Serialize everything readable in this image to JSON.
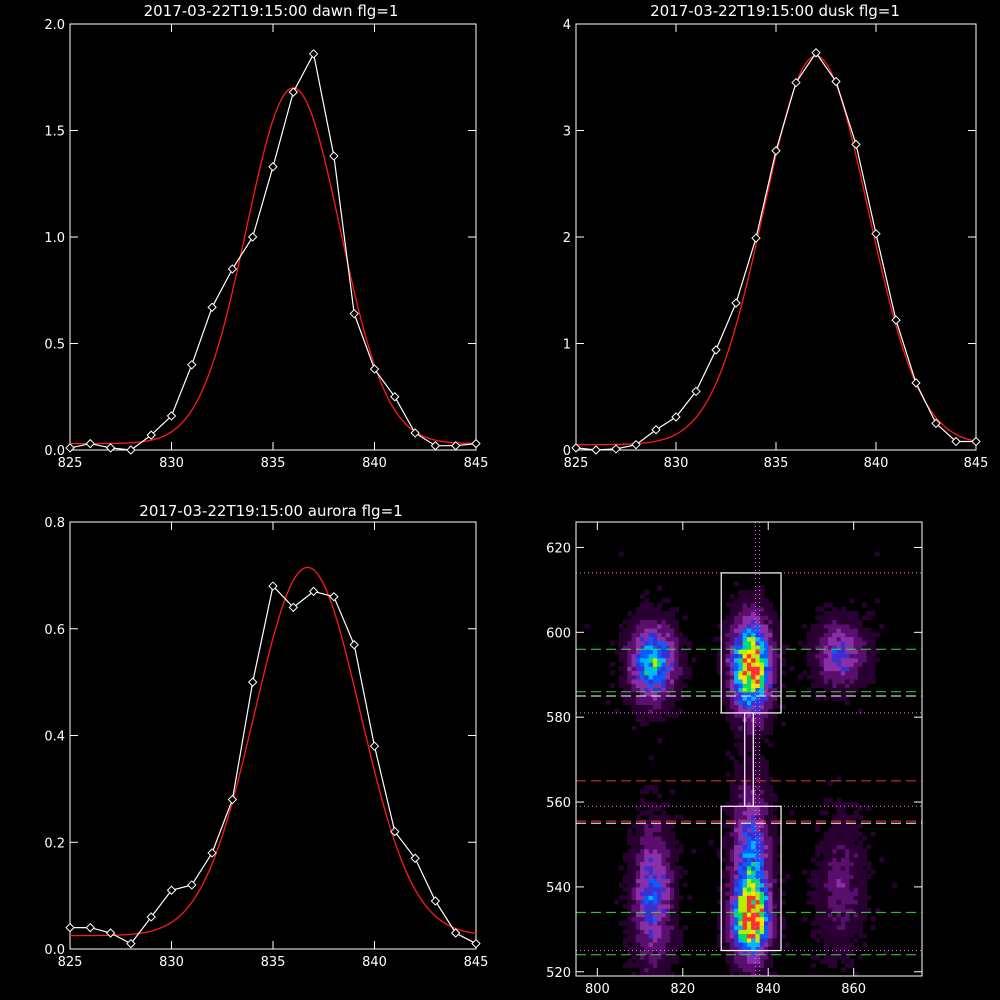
{
  "chart_data": [
    {
      "type": "line",
      "title": "2017-03-22T19:15:00 dawn flg=1",
      "xlim": [
        825,
        845
      ],
      "ylim": [
        0,
        2.0
      ],
      "x_ticks": [
        825,
        830,
        835,
        840,
        845
      ],
      "y_ticks": [
        0.0,
        0.5,
        1.0,
        1.5,
        2.0
      ],
      "y_tick_labels": [
        "0.0",
        "0.5",
        "1.0",
        "1.5",
        "2.0"
      ],
      "series": [
        {
          "role": "data",
          "color": "#ffffff",
          "marker": "diamond",
          "x": [
            825,
            826,
            827,
            828,
            829,
            830,
            831,
            832,
            833,
            834,
            835,
            836,
            837,
            838,
            839,
            840,
            841,
            842,
            843,
            844,
            845
          ],
          "y": [
            0.01,
            0.03,
            0.01,
            0.0,
            0.07,
            0.16,
            0.4,
            0.67,
            0.85,
            1.0,
            1.33,
            1.68,
            1.86,
            1.38,
            0.64,
            0.38,
            0.25,
            0.08,
            0.02,
            0.02,
            0.03
          ]
        },
        {
          "role": "fit",
          "color": "#ff1a1a",
          "gaussian": {
            "amplitude": 1.67,
            "center": 836.0,
            "sigma": 2.3,
            "offset": 0.03
          }
        }
      ]
    },
    {
      "type": "line",
      "title": "2017-03-22T19:15:00 dusk flg=1",
      "xlim": [
        825,
        845
      ],
      "ylim": [
        0,
        4
      ],
      "x_ticks": [
        825,
        830,
        835,
        840,
        845
      ],
      "y_ticks": [
        0,
        1,
        2,
        3,
        4
      ],
      "y_tick_labels": [
        "0",
        "1",
        "2",
        "3",
        "4"
      ],
      "series": [
        {
          "role": "data",
          "color": "#ffffff",
          "marker": "diamond",
          "x": [
            825,
            826,
            827,
            828,
            829,
            830,
            831,
            832,
            833,
            834,
            835,
            836,
            837,
            838,
            839,
            840,
            841,
            842,
            843,
            844,
            845
          ],
          "y": [
            0.02,
            0.0,
            0.01,
            0.05,
            0.19,
            0.31,
            0.55,
            0.94,
            1.38,
            1.99,
            2.81,
            3.45,
            3.73,
            3.46,
            2.87,
            2.03,
            1.22,
            0.63,
            0.25,
            0.08,
            0.08
          ]
        },
        {
          "role": "fit",
          "color": "#ff1a1a",
          "gaussian": {
            "amplitude": 3.65,
            "center": 837.0,
            "sigma": 2.6,
            "offset": 0.05
          }
        }
      ]
    },
    {
      "type": "line",
      "title": "2017-03-22T19:15:00 aurora flg=1",
      "xlim": [
        825,
        845
      ],
      "ylim": [
        0,
        0.8
      ],
      "x_ticks": [
        825,
        830,
        835,
        840,
        845
      ],
      "y_ticks": [
        0.0,
        0.2,
        0.4,
        0.6,
        0.8
      ],
      "y_tick_labels": [
        "0.0",
        "0.2",
        "0.4",
        "0.6",
        "0.8"
      ],
      "series": [
        {
          "role": "data",
          "color": "#ffffff",
          "marker": "diamond",
          "x": [
            825,
            826,
            827,
            828,
            829,
            830,
            831,
            832,
            833,
            834,
            835,
            836,
            837,
            838,
            839,
            840,
            841,
            842,
            843,
            844,
            845
          ],
          "y": [
            0.04,
            0.04,
            0.03,
            0.01,
            0.06,
            0.11,
            0.12,
            0.18,
            0.28,
            0.5,
            0.68,
            0.64,
            0.67,
            0.66,
            0.57,
            0.38,
            0.22,
            0.17,
            0.09,
            0.03,
            0.01
          ]
        },
        {
          "role": "fit",
          "color": "#ff1a1a",
          "gaussian": {
            "amplitude": 0.69,
            "center": 836.7,
            "sigma": 2.6,
            "offset": 0.025
          }
        }
      ]
    },
    {
      "type": "heatmap",
      "title": "",
      "xlim": [
        795,
        876
      ],
      "ylim": [
        519,
        626
      ],
      "x_ticks": [
        800,
        820,
        840,
        860
      ],
      "y_ticks": [
        520,
        540,
        560,
        580,
        600,
        620
      ],
      "colormap": [
        "#000000",
        "#2a0033",
        "#5a0f6e",
        "#8a2fa8",
        "#3a2fd0",
        "#0a5cff",
        "#00b4ff",
        "#00e070",
        "#b0f000",
        "#ffe600",
        "#ff3030"
      ],
      "blobs": [
        {
          "x": 836,
          "y": 592,
          "sx": 3.0,
          "sy": 7.0,
          "a": 1.0
        },
        {
          "x": 836,
          "y": 532,
          "sx": 2.8,
          "sy": 5.0,
          "a": 0.8
        },
        {
          "x": 836,
          "y": 544,
          "sx": 2.8,
          "sy": 12.0,
          "a": 0.55
        },
        {
          "x": 813,
          "y": 593,
          "sx": 3.5,
          "sy": 6.0,
          "a": 0.6
        },
        {
          "x": 813,
          "y": 538,
          "sx": 3.0,
          "sy": 10.0,
          "a": 0.42
        },
        {
          "x": 857,
          "y": 595,
          "sx": 4.0,
          "sy": 5.0,
          "a": 0.35
        },
        {
          "x": 857,
          "y": 540,
          "sx": 3.5,
          "sy": 10.0,
          "a": 0.18
        }
      ],
      "boxes": [
        {
          "x0": 829,
          "x1": 843,
          "y0": 581,
          "y1": 614,
          "color": "#ffffff"
        },
        {
          "x0": 829,
          "x1": 843,
          "y0": 525,
          "y1": 559,
          "color": "#ffffff"
        },
        {
          "x0": 834.5,
          "x1": 836.5,
          "y0": 559,
          "y1": 581,
          "color": "#ffffff"
        }
      ],
      "hlines": [
        {
          "y": 614,
          "color": "#ff66ff",
          "style": "dotted"
        },
        {
          "y": 596,
          "color": "#33dd33",
          "style": "dashed"
        },
        {
          "y": 586,
          "color": "#33dd33",
          "style": "dashed"
        },
        {
          "y": 585,
          "color": "#ffffff",
          "style": "dashed"
        },
        {
          "y": 581,
          "color": "#ff66ff",
          "style": "dotted"
        },
        {
          "y": 565,
          "color": "#e04020",
          "style": "dashed"
        },
        {
          "y": 559,
          "color": "#ff66ff",
          "style": "dotted"
        },
        {
          "y": 555,
          "color": "#ffffff",
          "style": "dashed"
        },
        {
          "y": 555.5,
          "color": "#ff3030",
          "style": "dashed"
        },
        {
          "y": 534,
          "color": "#33dd33",
          "style": "dashed"
        },
        {
          "y": 525,
          "color": "#ff66ff",
          "style": "dotted"
        },
        {
          "y": 524,
          "color": "#33dd33",
          "style": "dashed"
        }
      ],
      "vlines": [
        {
          "x": 837,
          "color": "#ff66ff",
          "style": "dotted"
        },
        {
          "x": 838,
          "color": "#ff66ff",
          "style": "dotted"
        }
      ]
    }
  ]
}
